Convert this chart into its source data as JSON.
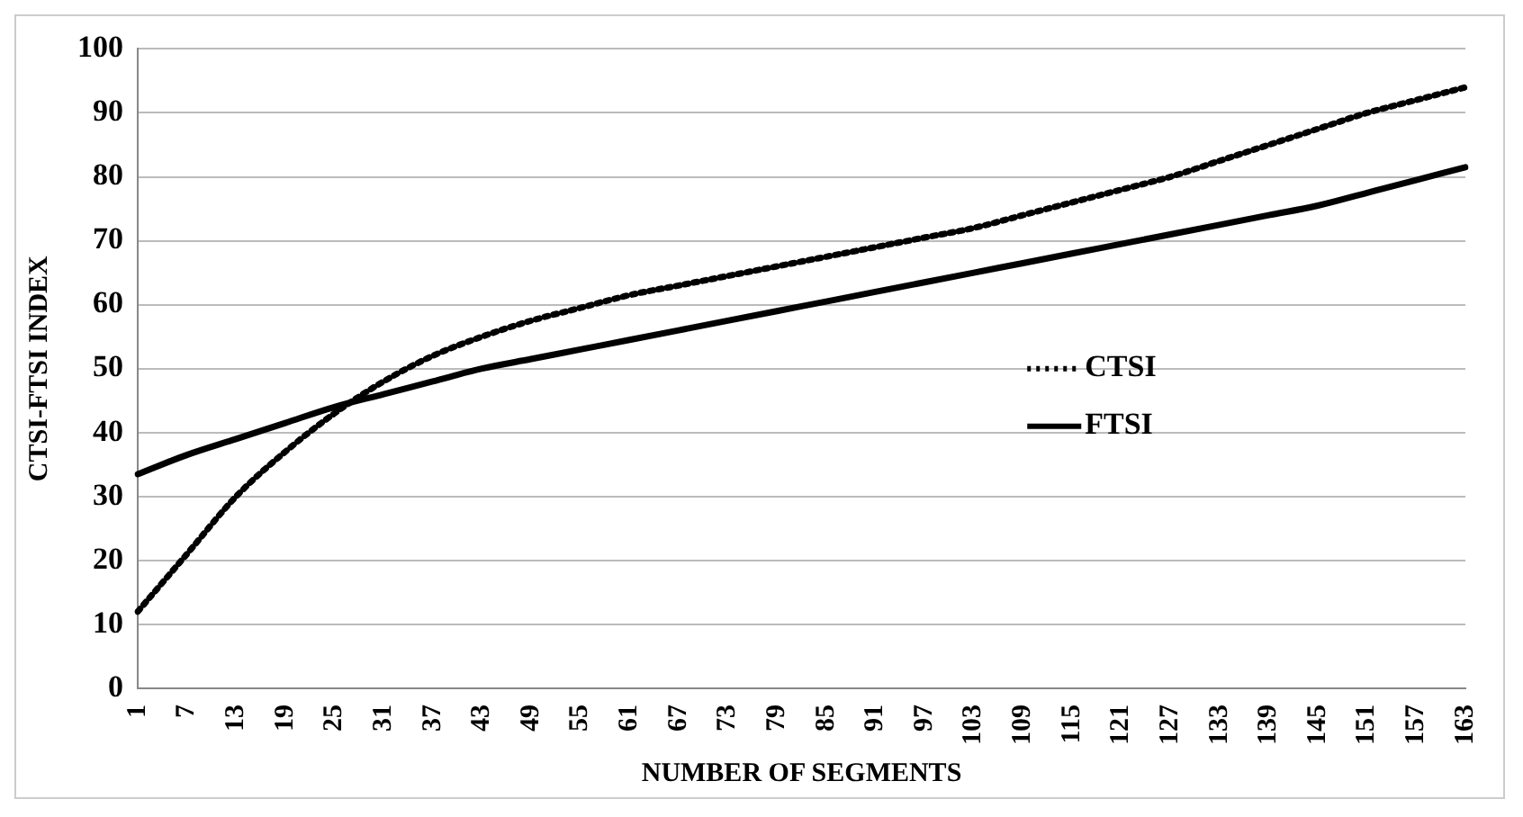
{
  "chart_data": {
    "type": "line",
    "xlabel": "NUMBER OF SEGMENTS",
    "ylabel": "CTSI-FTSI INDEX",
    "categories": [
      "1",
      "7",
      "13",
      "19",
      "25",
      "31",
      "37",
      "43",
      "49",
      "55",
      "61",
      "67",
      "73",
      "79",
      "85",
      "91",
      "97",
      "103",
      "109",
      "115",
      "121",
      "127",
      "133",
      "139",
      "145",
      "151",
      "157",
      "163"
    ],
    "series": [
      {
        "name": "CTSI",
        "color": "#000000",
        "line_style": "dotted",
        "values": [
          12,
          21,
          30,
          37,
          43,
          48,
          52,
          55,
          57.5,
          59.5,
          61.5,
          63,
          64.5,
          66,
          67.5,
          69,
          70.5,
          72,
          74,
          76,
          78,
          80,
          82.5,
          85,
          87.5,
          90,
          92,
          94
        ]
      },
      {
        "name": "FTSI",
        "color": "#000000",
        "line_style": "solid",
        "values": [
          33.5,
          36.5,
          39,
          41.5,
          44,
          46,
          48,
          50,
          51.5,
          53,
          54.5,
          56,
          57.5,
          59,
          60.5,
          62,
          63.5,
          65,
          66.5,
          68,
          69.5,
          71,
          72.5,
          74,
          75.5,
          77.5,
          79.5,
          81.5
        ]
      }
    ],
    "ylim": [
      0,
      100
    ],
    "yticks": [
      0,
      10,
      20,
      30,
      40,
      50,
      60,
      70,
      80,
      90,
      100
    ],
    "grid": "y",
    "legend": "right",
    "marker": "none"
  }
}
